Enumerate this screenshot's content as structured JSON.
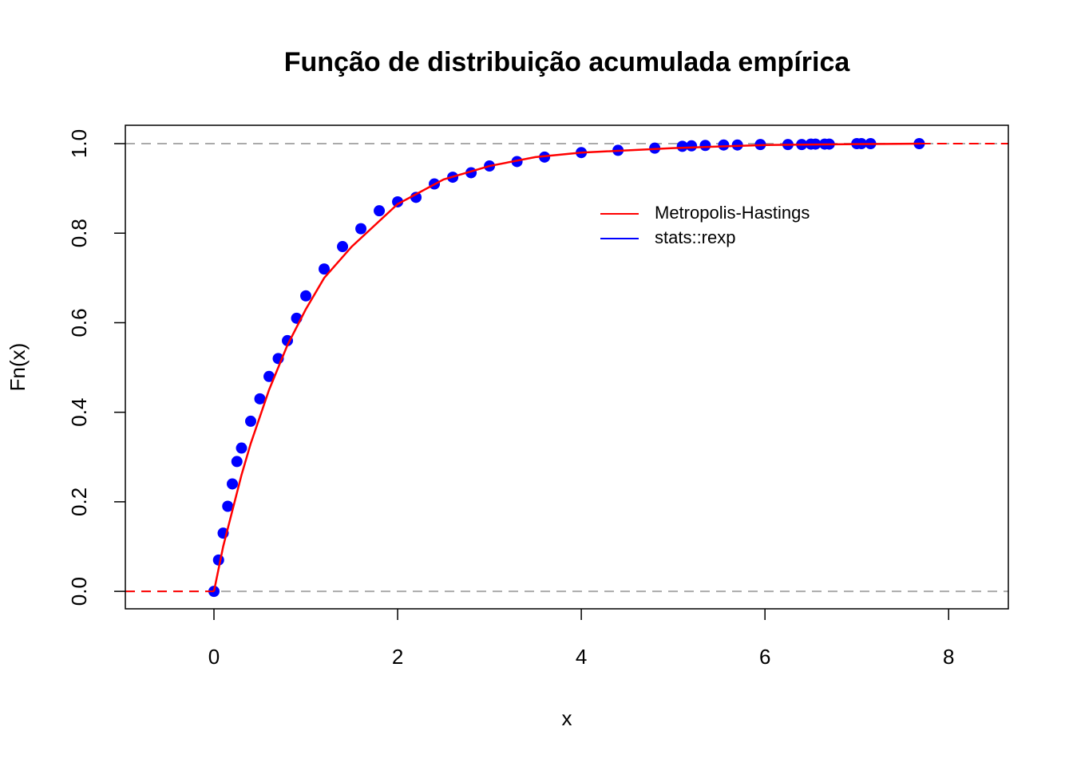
{
  "chart_data": {
    "type": "ecdf",
    "title": "Função de distribuição acumulada empírica",
    "x_label": "x",
    "y_label": "Fn(x)",
    "xlim": [
      -0.965,
      8.65
    ],
    "ylim": [
      -0.039,
      1.041
    ],
    "xticks": [
      0,
      2,
      4,
      6,
      8
    ],
    "yticks": [
      {
        "value": 0,
        "label": "0.0"
      },
      0.2,
      0.4,
      0.6,
      0.8,
      {
        "value": 1,
        "label": "1.0"
      }
    ],
    "hlines": [
      0,
      1
    ],
    "series": [
      {
        "name": "Metropolis-Hastings",
        "color": "#ff0000",
        "style": "line",
        "x": [
          0,
          0.1,
          0.2,
          0.3,
          0.4,
          0.5,
          0.6,
          0.8,
          1.0,
          1.2,
          1.5,
          2.0,
          2.5,
          3.0,
          3.5,
          4.0,
          5.0,
          6.0,
          7.0,
          7.7
        ],
        "values": [
          0,
          0.1,
          0.18,
          0.26,
          0.33,
          0.39,
          0.45,
          0.55,
          0.63,
          0.7,
          0.77,
          0.865,
          0.92,
          0.95,
          0.97,
          0.98,
          0.99,
          0.997,
          0.999,
          1.0
        ]
      },
      {
        "name": "stats::rexp",
        "color": "#0000ff",
        "style": "points",
        "x": [
          0,
          0.05,
          0.1,
          0.15,
          0.2,
          0.25,
          0.3,
          0.4,
          0.5,
          0.6,
          0.7,
          0.8,
          0.9,
          1.0,
          1.2,
          1.4,
          1.6,
          1.8,
          2.0,
          2.2,
          2.4,
          2.6,
          2.8,
          3.0,
          3.3,
          3.6,
          4.0,
          4.4,
          4.8,
          5.1,
          5.2,
          5.35,
          5.55,
          5.7,
          5.95,
          6.25,
          6.4,
          6.5,
          6.55,
          6.65,
          6.7,
          7.0,
          7.05,
          7.15,
          7.68
        ],
        "values": [
          0,
          0.07,
          0.13,
          0.19,
          0.24,
          0.29,
          0.32,
          0.38,
          0.43,
          0.48,
          0.52,
          0.56,
          0.61,
          0.66,
          0.72,
          0.77,
          0.81,
          0.85,
          0.87,
          0.88,
          0.91,
          0.925,
          0.935,
          0.95,
          0.96,
          0.97,
          0.98,
          0.985,
          0.99,
          0.994,
          0.995,
          0.996,
          0.997,
          0.997,
          0.998,
          0.998,
          0.998,
          0.999,
          0.999,
          0.999,
          0.999,
          1.0,
          1.0,
          1.0,
          1.0
        ]
      }
    ]
  }
}
